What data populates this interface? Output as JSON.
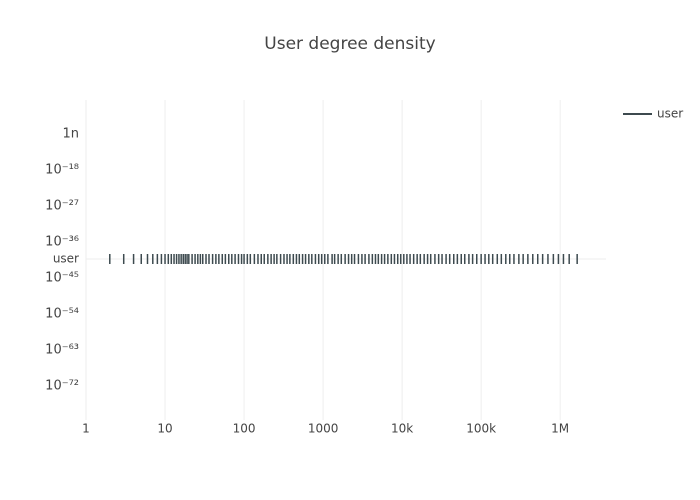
{
  "chart_data": {
    "type": "rug",
    "title": "User degree density",
    "rug_label": "user",
    "series": [
      {
        "name": "user",
        "color": "#3d4a4f",
        "values": [
          2,
          3,
          4,
          5,
          6,
          7,
          8,
          9,
          10,
          11,
          12,
          13,
          14,
          15,
          16,
          17,
          18,
          19,
          20,
          22,
          24,
          26,
          28,
          30,
          33,
          36,
          40,
          44,
          48,
          53,
          58,
          64,
          70,
          77,
          85,
          93,
          100,
          110,
          120,
          135,
          150,
          165,
          180,
          200,
          220,
          240,
          260,
          290,
          320,
          350,
          380,
          420,
          460,
          500,
          550,
          600,
          660,
          720,
          800,
          880,
          960,
          1050,
          1150,
          1300,
          1400,
          1550,
          1700,
          1900,
          2100,
          2300,
          2500,
          2800,
          3100,
          3400,
          3800,
          4200,
          4600,
          5000,
          5500,
          6000,
          6600,
          7300,
          8000,
          8800,
          9600,
          10500,
          11500,
          12600,
          14000,
          15500,
          17000,
          19000,
          21000,
          23000,
          26000,
          29000,
          32000,
          36000,
          40000,
          45000,
          50000,
          56000,
          62000,
          70000,
          78000,
          88000,
          100000,
          112000,
          125000,
          140000,
          160000,
          180000,
          205000,
          230000,
          260000,
          300000,
          340000,
          390000,
          450000,
          520000,
          600000,
          700000,
          820000,
          950000,
          1100000,
          1300000,
          1640000
        ]
      }
    ],
    "x_log": true,
    "y_log": true,
    "grid": true,
    "xlim": [
      1,
      3800000
    ],
    "xticks": [
      1,
      10,
      100,
      1000,
      {
        "value": 10000,
        "label": "10k"
      },
      {
        "value": 100000,
        "label": "100k"
      },
      {
        "value": 1000000,
        "label": "1M"
      }
    ],
    "ylim": [
      3e-81,
      0.3
    ],
    "yticks": [
      {
        "value": 1e-09,
        "label": "1n"
      },
      {
        "value": 1e-18,
        "label": "10⁻¹⁸"
      },
      {
        "value": 1e-27,
        "label": "10⁻²⁷"
      },
      {
        "value": 1e-36,
        "label": "10⁻³⁶"
      },
      {
        "value": 1e-45,
        "label": "10⁻⁴⁵"
      },
      {
        "value": 1e-54,
        "label": "10⁻⁵⁴"
      },
      {
        "value": 1e-63,
        "label": "10⁻⁶³"
      },
      {
        "value": 1e-72,
        "label": "10⁻⁷²"
      }
    ],
    "legend": "top-right"
  }
}
